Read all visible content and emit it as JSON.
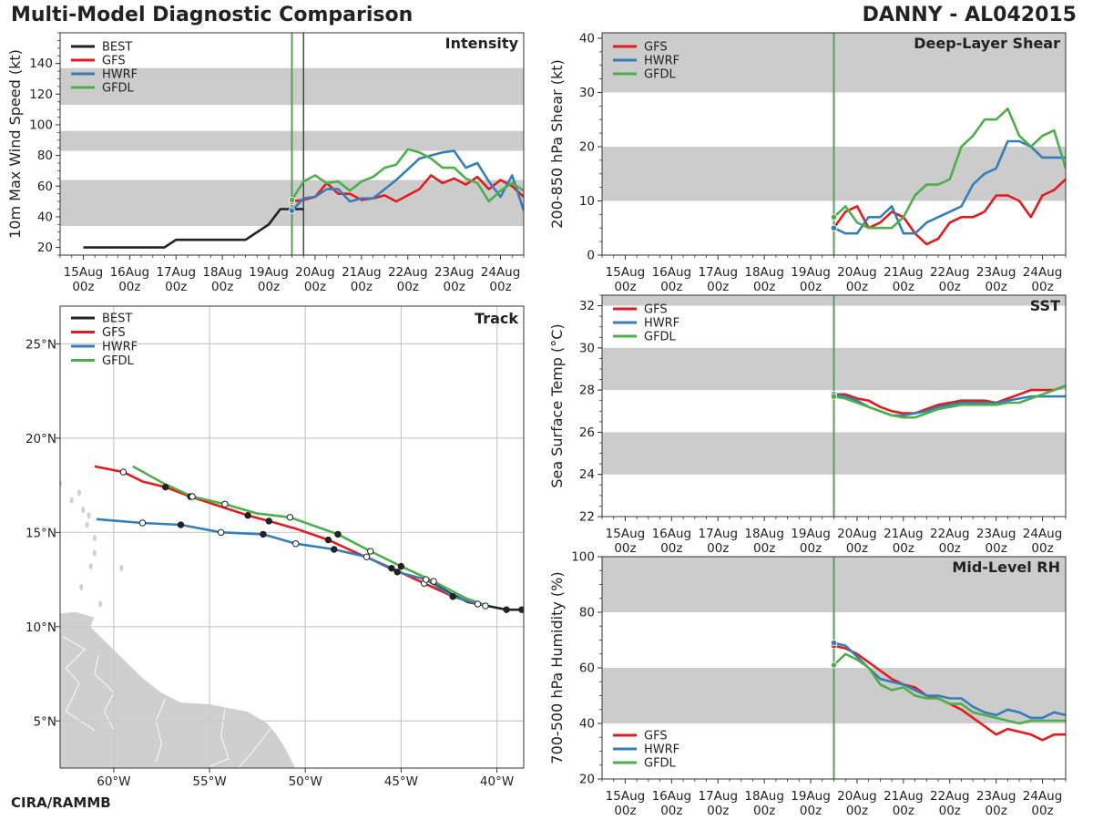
{
  "header": {
    "title": "Multi-Model Diagnostic Comparison",
    "storm": "DANNY - AL042015"
  },
  "footer": {
    "credit": "CIRA/RAMMB"
  },
  "colors": {
    "BEST": "#222222",
    "GFS": "#e41a1c",
    "HWRF": "#377eb8",
    "GFDL": "#4daf4a",
    "band": "#cccccc",
    "init_line": "#5a9e5a"
  },
  "time_ticks": [
    "15Aug\n00z",
    "16Aug\n00z",
    "17Aug\n00z",
    "18Aug\n00z",
    "19Aug\n00z",
    "20Aug\n00z",
    "21Aug\n00z",
    "22Aug\n00z",
    "23Aug\n00z",
    "24Aug\n00z"
  ],
  "chart_data": [
    {
      "id": "intensity",
      "type": "line",
      "title": "Intensity",
      "ylabel": "10m Max Wind Speed (kt)",
      "xlim_days": [
        -0.5,
        9.5
      ],
      "ylim": [
        15,
        160
      ],
      "yticks": [
        20,
        40,
        60,
        80,
        100,
        120,
        140
      ],
      "bands": [
        [
          34,
          64
        ],
        [
          83,
          96
        ],
        [
          113,
          137
        ]
      ],
      "init_day": 4.5,
      "current_day": 4.75,
      "legend": [
        "BEST",
        "GFS",
        "HWRF",
        "GFDL"
      ],
      "series": [
        {
          "name": "BEST",
          "x": [
            0,
            0.25,
            0.5,
            0.75,
            1,
            1.25,
            1.5,
            1.75,
            2,
            2.25,
            2.5,
            2.75,
            3,
            3.25,
            3.5,
            3.75,
            4,
            4.25,
            4.5,
            4.75
          ],
          "y": [
            20,
            20,
            20,
            20,
            20,
            20,
            20,
            20,
            25,
            25,
            25,
            25,
            25,
            25,
            25,
            30,
            35,
            45,
            45,
            45
          ]
        },
        {
          "name": "GFS",
          "x": [
            4.5,
            4.75,
            5,
            5.25,
            5.5,
            5.75,
            6,
            6.25,
            6.5,
            6.75,
            7,
            7.25,
            7.5,
            7.75,
            8,
            8.25,
            8.5,
            8.75,
            9,
            9.25,
            9.5
          ],
          "y": [
            50,
            51,
            53,
            62,
            55,
            55,
            51,
            52,
            54,
            50,
            54,
            58,
            67,
            62,
            65,
            61,
            66,
            58,
            64,
            60,
            53
          ]
        },
        {
          "name": "HWRF",
          "x": [
            4.5,
            4.75,
            5,
            5.25,
            5.5,
            5.75,
            6,
            6.25,
            6.5,
            6.75,
            7,
            7.25,
            7.5,
            7.75,
            8,
            8.25,
            8.5,
            8.75,
            9,
            9.25,
            9.5
          ],
          "y": [
            44,
            52,
            53,
            58,
            58,
            50,
            52,
            52,
            58,
            64,
            71,
            78,
            80,
            82,
            83,
            72,
            75,
            63,
            53,
            67,
            44
          ]
        },
        {
          "name": "GFDL",
          "x": [
            4.5,
            4.75,
            5,
            5.25,
            5.5,
            5.75,
            6,
            6.25,
            6.5,
            6.75,
            7,
            7.25,
            7.5,
            7.75,
            8,
            8.25,
            8.5,
            8.75,
            9,
            9.25,
            9.5
          ],
          "y": [
            51,
            63,
            67,
            62,
            63,
            57,
            63,
            66,
            72,
            74,
            84,
            82,
            78,
            72,
            72,
            65,
            62,
            50,
            57,
            62,
            57
          ]
        }
      ]
    },
    {
      "id": "track",
      "type": "scatter",
      "title": "Track",
      "xlim": [
        -62.8,
        -38.6
      ],
      "ylim": [
        2.5,
        27
      ],
      "xticks": [
        -60,
        -55,
        -50,
        -45,
        -40
      ],
      "xtick_labels": [
        "60°W",
        "55°W",
        "50°W",
        "45°W",
        "40°W"
      ],
      "yticks": [
        5,
        10,
        15,
        20,
        25
      ],
      "ytick_labels": [
        "5°N",
        "10°N",
        "15°N",
        "20°N",
        "25°N"
      ],
      "legend": [
        "BEST",
        "GFS",
        "HWRF",
        "GFDL"
      ],
      "series": [
        {
          "name": "BEST",
          "lon": [
            -43.5,
            -42.5,
            -41.5,
            -40.5,
            -39.5,
            -38.7
          ],
          "lat": [
            12.4,
            11.8,
            11.3,
            11.1,
            10.9,
            10.9
          ],
          "marks": [
            0,
            0,
            0,
            0,
            1,
            1
          ]
        },
        {
          "name": "GFS",
          "lon": [
            -61,
            -59.5,
            -58.5,
            -57.3,
            -56,
            -54.5,
            -53,
            -51.9,
            -50.5,
            -48.8,
            -47.3,
            -45.5,
            -43.8,
            -42.3,
            -41
          ],
          "lat": [
            18.5,
            18.2,
            17.7,
            17.4,
            16.9,
            16.4,
            15.9,
            15.6,
            15.2,
            14.6,
            13.9,
            13.1,
            12.3,
            11.6,
            11.2
          ],
          "marks": [
            0,
            2,
            0,
            1,
            1,
            0,
            1,
            1,
            0,
            1,
            0,
            1,
            2,
            1,
            2
          ]
        },
        {
          "name": "HWRF",
          "lon": [
            -60.9,
            -58.5,
            -56.5,
            -54.4,
            -52.2,
            -50.5,
            -48.5,
            -46.8,
            -45.2,
            -43.7,
            -42.3,
            -40.6
          ],
          "lat": [
            15.7,
            15.5,
            15.4,
            15.0,
            14.9,
            14.4,
            14.1,
            13.7,
            12.9,
            12.5,
            11.6,
            11.1
          ],
          "marks": [
            0,
            2,
            1,
            2,
            1,
            2,
            1,
            2,
            1,
            2,
            1,
            2
          ]
        },
        {
          "name": "GFDL",
          "lon": [
            -59,
            -57.4,
            -55.9,
            -54.2,
            -52.5,
            -50.8,
            -48.3,
            -46.6,
            -45,
            -43.3,
            -41.6,
            -40.5
          ],
          "lat": [
            18.5,
            17.6,
            16.9,
            16.5,
            16.0,
            15.8,
            14.9,
            14.0,
            13.2,
            12.4,
            11.5,
            11.1
          ],
          "marks": [
            0,
            0,
            2,
            2,
            0,
            2,
            1,
            2,
            1,
            2,
            0,
            0
          ]
        }
      ]
    },
    {
      "id": "shear",
      "type": "line",
      "title": "Deep-Layer Shear",
      "ylabel": "200-850 hPa Shear (kt)",
      "xlim_days": [
        -0.5,
        9.5
      ],
      "ylim": [
        0,
        41
      ],
      "yticks": [
        0,
        10,
        20,
        30,
        40
      ],
      "bands": [
        [
          10,
          20
        ],
        [
          30,
          41
        ]
      ],
      "init_day": 4.5,
      "legend": [
        "GFS",
        "HWRF",
        "GFDL"
      ],
      "series": [
        {
          "name": "GFS",
          "x": [
            4.5,
            4.75,
            5,
            5.25,
            5.5,
            5.75,
            6,
            6.25,
            6.5,
            6.75,
            7,
            7.25,
            7.5,
            7.75,
            8,
            8.25,
            8.5,
            8.75,
            9,
            9.25,
            9.5
          ],
          "y": [
            5,
            8,
            9,
            5,
            6,
            8,
            7,
            4,
            2,
            3,
            6,
            7,
            7,
            8,
            11,
            11,
            10,
            7,
            11,
            12,
            14
          ]
        },
        {
          "name": "HWRF",
          "x": [
            4.5,
            4.75,
            5,
            5.25,
            5.5,
            5.75,
            6,
            6.25,
            6.5,
            6.75,
            7,
            7.25,
            7.5,
            7.75,
            8,
            8.25,
            8.5,
            8.75,
            9,
            9.25,
            9.5
          ],
          "y": [
            5,
            4,
            4,
            7,
            7,
            9,
            4,
            4,
            6,
            7,
            8,
            9,
            13,
            15,
            16,
            21,
            21,
            20,
            18,
            18,
            18
          ]
        },
        {
          "name": "GFDL",
          "x": [
            4.5,
            4.75,
            5,
            5.25,
            5.5,
            5.75,
            6,
            6.25,
            6.5,
            6.75,
            7,
            7.25,
            7.5,
            7.75,
            8,
            8.25,
            8.5,
            8.75,
            9,
            9.25,
            9.5
          ],
          "y": [
            7,
            9,
            6,
            5,
            5,
            5,
            7,
            11,
            13,
            13,
            14,
            20,
            22,
            25,
            25,
            27,
            22,
            20,
            22,
            23,
            16
          ]
        }
      ]
    },
    {
      "id": "sst",
      "type": "line",
      "title": "SST",
      "ylabel": "Sea Surface Temp (°C)",
      "xlim_days": [
        -0.5,
        9.5
      ],
      "ylim": [
        22,
        32.5
      ],
      "yticks": [
        22,
        24,
        26,
        28,
        30,
        32
      ],
      "bands": [
        [
          24,
          26
        ],
        [
          28,
          30
        ],
        [
          32,
          32.5
        ]
      ],
      "init_day": 4.5,
      "legend": [
        "GFS",
        "HWRF",
        "GFDL"
      ],
      "series": [
        {
          "name": "GFS",
          "x": [
            4.5,
            4.75,
            5,
            5.25,
            5.5,
            5.75,
            6,
            6.25,
            6.5,
            6.75,
            7,
            7.25,
            7.5,
            7.75,
            8,
            8.25,
            8.5,
            8.75,
            9,
            9.25,
            9.5
          ],
          "y": [
            27.8,
            27.8,
            27.6,
            27.5,
            27.2,
            27.0,
            26.9,
            26.9,
            27.1,
            27.3,
            27.4,
            27.5,
            27.5,
            27.5,
            27.4,
            27.6,
            27.8,
            28.0,
            28.0,
            28.0,
            28.2
          ]
        },
        {
          "name": "HWRF",
          "x": [
            4.5,
            4.75,
            5,
            5.25,
            5.5,
            5.75,
            6,
            6.25,
            6.5,
            6.75,
            7,
            7.25,
            7.5,
            7.75,
            8,
            8.25,
            8.5,
            8.75,
            9,
            9.25,
            9.5
          ],
          "y": [
            27.8,
            27.7,
            27.5,
            27.2,
            27.0,
            26.8,
            26.8,
            26.9,
            27.0,
            27.2,
            27.3,
            27.4,
            27.4,
            27.4,
            27.4,
            27.5,
            27.6,
            27.7,
            27.7,
            27.7,
            27.7
          ]
        },
        {
          "name": "GFDL",
          "x": [
            4.5,
            4.75,
            5,
            5.25,
            5.5,
            5.75,
            6,
            6.25,
            6.5,
            6.75,
            7,
            7.25,
            7.5,
            7.75,
            8,
            8.25,
            8.5,
            8.75,
            9,
            9.25,
            9.5
          ],
          "y": [
            27.7,
            27.6,
            27.4,
            27.2,
            27.0,
            26.8,
            26.7,
            26.7,
            26.9,
            27.1,
            27.2,
            27.3,
            27.3,
            27.3,
            27.3,
            27.4,
            27.4,
            27.6,
            27.8,
            28.0,
            28.2
          ]
        }
      ]
    },
    {
      "id": "rh",
      "type": "line",
      "title": "Mid-Level RH",
      "ylabel": "700-500 hPa Humidity (%)",
      "xlim_days": [
        -0.5,
        9.5
      ],
      "ylim": [
        20,
        100
      ],
      "yticks": [
        20,
        40,
        60,
        80,
        100
      ],
      "bands": [
        [
          40,
          60
        ],
        [
          80,
          100
        ]
      ],
      "init_day": 4.5,
      "legend": [
        "GFS",
        "HWRF",
        "GFDL"
      ],
      "series": [
        {
          "name": "GFS",
          "x": [
            4.5,
            4.75,
            5,
            5.25,
            5.5,
            5.75,
            6,
            6.25,
            6.5,
            6.75,
            7,
            7.25,
            7.5,
            7.75,
            8,
            8.25,
            8.5,
            8.75,
            9,
            9.25,
            9.5
          ],
          "y": [
            68,
            67,
            65,
            62,
            59,
            56,
            54,
            53,
            50,
            49,
            47,
            45,
            42,
            39,
            36,
            38,
            37,
            36,
            34,
            36,
            36
          ]
        },
        {
          "name": "HWRF",
          "x": [
            4.5,
            4.75,
            5,
            5.25,
            5.5,
            5.75,
            6,
            6.25,
            6.5,
            6.75,
            7,
            7.25,
            7.5,
            7.75,
            8,
            8.25,
            8.5,
            8.75,
            9,
            9.25,
            9.5
          ],
          "y": [
            69,
            68,
            64,
            60,
            56,
            55,
            54,
            52,
            50,
            50,
            49,
            49,
            46,
            44,
            43,
            45,
            44,
            42,
            42,
            44,
            43
          ]
        },
        {
          "name": "GFDL",
          "x": [
            4.5,
            4.75,
            5,
            5.25,
            5.5,
            5.75,
            6,
            6.25,
            6.5,
            6.75,
            7,
            7.25,
            7.5,
            7.75,
            8,
            8.25,
            8.5,
            8.75,
            9,
            9.25,
            9.5
          ],
          "y": [
            61,
            65,
            63,
            60,
            54,
            52,
            53,
            50,
            49,
            49,
            47,
            47,
            44,
            43,
            42,
            41,
            40,
            41,
            41,
            41,
            41
          ]
        }
      ]
    }
  ]
}
